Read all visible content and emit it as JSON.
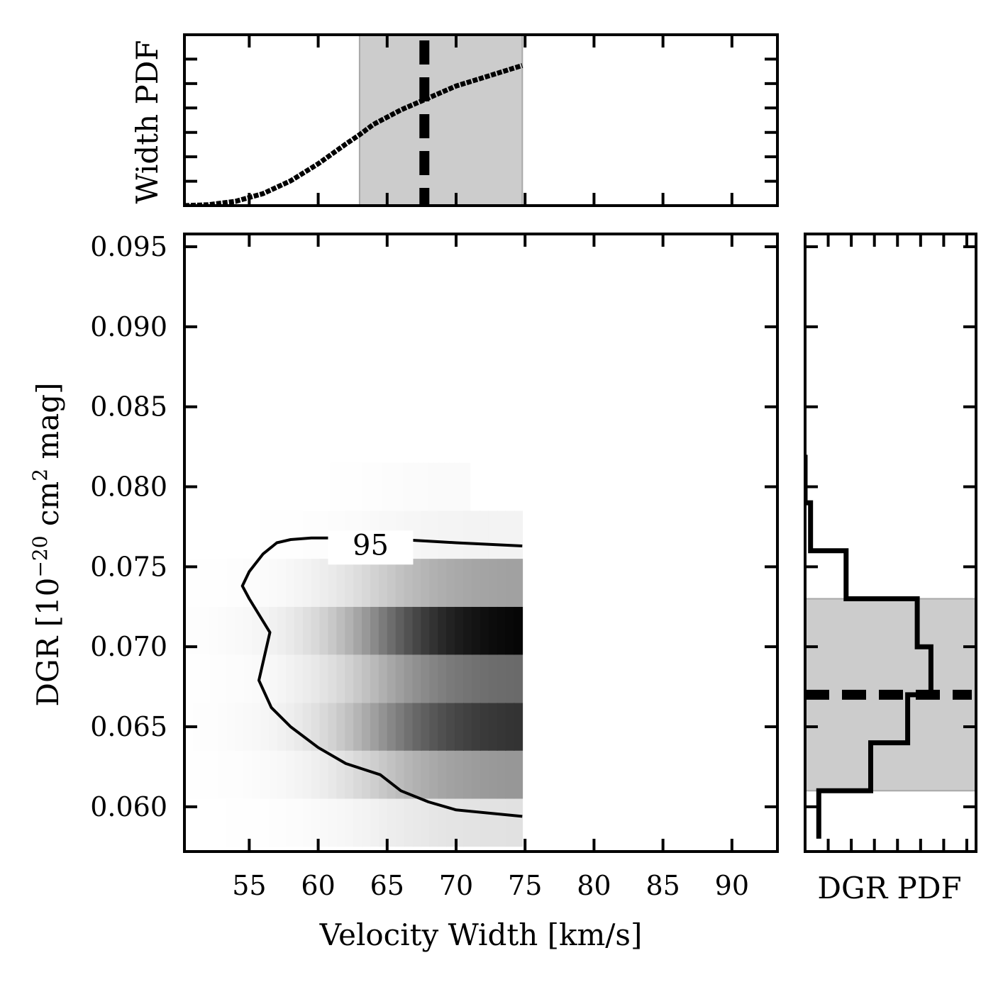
{
  "chart_data": [
    {
      "panel": "top",
      "type": "line",
      "ylabel": "Width PDF",
      "xlim": [
        50.3,
        93.3
      ],
      "x": [
        50.3,
        52,
        54,
        56,
        58,
        60,
        62,
        63,
        64,
        66,
        68,
        70,
        72,
        74,
        74.8
      ],
      "y": [
        0.0,
        0.005,
        0.025,
        0.07,
        0.145,
        0.245,
        0.36,
        0.415,
        0.475,
        0.56,
        0.63,
        0.7,
        0.75,
        0.8,
        0.82
      ],
      "median_line_x": 67.7,
      "shaded_interval_x": [
        63.0,
        74.8
      ],
      "ylim": [
        0,
        1.0
      ]
    },
    {
      "panel": "main",
      "type": "heatmap",
      "xlabel": "Velocity Width [km/s]",
      "ylabel": "DGR [10$^{-20}$ cm$^2$ mag]",
      "xlim": [
        50.3,
        93.3
      ],
      "ylim": [
        0.0572,
        0.0958
      ],
      "xticks": [
        55,
        60,
        65,
        70,
        75,
        80,
        85,
        90
      ],
      "xtick_labels": [
        "55",
        "60",
        "65",
        "70",
        "75",
        "80",
        "85",
        "90"
      ],
      "yticks": [
        0.06,
        0.065,
        0.07,
        0.075,
        0.08,
        0.085,
        0.09,
        0.095
      ],
      "ytick_labels": [
        "0.060",
        "0.065",
        "0.070",
        "0.075",
        "0.080",
        "0.085",
        "0.090",
        "0.095"
      ],
      "heatmap_rows": [
        {
          "y_range": [
            0.0575,
            0.0605
          ],
          "x_range": [
            50.3,
            74.8
          ],
          "max_intensity": 0.12
        },
        {
          "y_range": [
            0.0605,
            0.0635
          ],
          "x_range": [
            50.3,
            74.8
          ],
          "max_intensity": 0.42
        },
        {
          "y_range": [
            0.0635,
            0.0665
          ],
          "x_range": [
            50.3,
            74.8
          ],
          "max_intensity": 0.82
        },
        {
          "y_range": [
            0.0665,
            0.0695
          ],
          "x_range": [
            50.3,
            74.8
          ],
          "max_intensity": 0.6
        },
        {
          "y_range": [
            0.0695,
            0.0725
          ],
          "x_range": [
            50.3,
            74.8
          ],
          "max_intensity": 1.0
        },
        {
          "y_range": [
            0.0725,
            0.0755
          ],
          "x_range": [
            50.3,
            74.8
          ],
          "max_intensity": 0.38
        },
        {
          "y_range": [
            0.0755,
            0.0785
          ],
          "x_range": [
            50.3,
            74.8
          ],
          "max_intensity": 0.05
        },
        {
          "y_range": [
            0.0785,
            0.0815
          ],
          "x_range": [
            56,
            71
          ],
          "max_intensity": 0.02
        }
      ],
      "contour": {
        "label": "95",
        "label_at": [
          63.8,
          0.0762
        ],
        "x": [
          74.8,
          70,
          66,
          63,
          61,
          59.5,
          58,
          57,
          56,
          55,
          54.5,
          55,
          56.5,
          55.7,
          56.6,
          58,
          60,
          62,
          64.5,
          66,
          68,
          70,
          74.8
        ],
        "y": [
          0.0763,
          0.0765,
          0.0767,
          0.0768,
          0.0768,
          0.0768,
          0.0767,
          0.0765,
          0.0758,
          0.0747,
          0.0738,
          0.073,
          0.0709,
          0.0679,
          0.0662,
          0.065,
          0.0637,
          0.0627,
          0.062,
          0.061,
          0.0603,
          0.0598,
          0.0594
        ]
      }
    },
    {
      "panel": "right",
      "type": "step",
      "xlabel": "DGR PDF",
      "ylim": [
        0.0572,
        0.0958
      ],
      "bin_edges": [
        0.058,
        0.061,
        0.064,
        0.067,
        0.07,
        0.073,
        0.076,
        0.079,
        0.082
      ],
      "pdf": [
        0.1,
        0.48,
        0.75,
        0.92,
        0.82,
        0.3,
        0.04,
        0.0
      ],
      "median_line_y": 0.067,
      "shaded_interval_y": [
        0.061,
        0.073
      ],
      "xlim": [
        0,
        1.25
      ]
    }
  ]
}
